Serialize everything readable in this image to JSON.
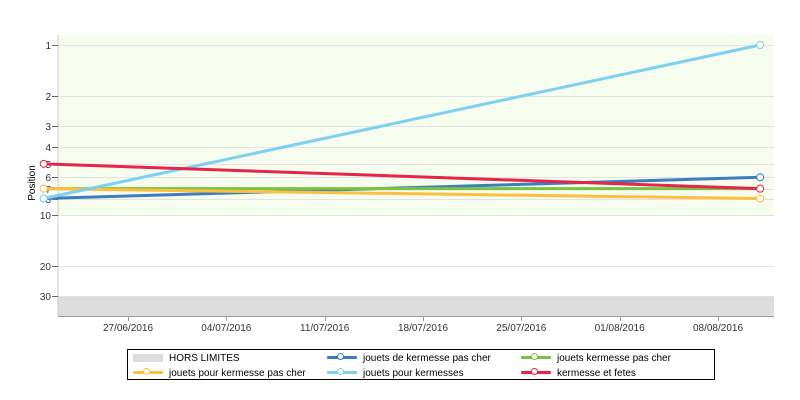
{
  "chart_data": {
    "type": "line",
    "title": "",
    "xlabel": "",
    "ylabel": "Position",
    "y_scale": "log",
    "y_inverted": true,
    "y_ticks": [
      1,
      2,
      3,
      4,
      5,
      6,
      7,
      8,
      10,
      20,
      30
    ],
    "x_tick_labels": [
      "27/06/2016",
      "04/07/2016",
      "11/07/2016",
      "18/07/2016",
      "25/07/2016",
      "01/08/2016",
      "08/08/2016"
    ],
    "x": [
      "2016-06-21",
      "2016-08-11"
    ],
    "grid": true,
    "legend_position": "bottom",
    "out_of_range_band": {
      "name": "HORS LIMITES",
      "color": "#dddddd"
    },
    "series": [
      {
        "name": "jouets de kermesse pas cher",
        "color": "#3d7dbf",
        "values": [
          8,
          6
        ]
      },
      {
        "name": "jouets kermesse pas cher",
        "color": "#7cc242",
        "values": [
          7,
          7
        ]
      },
      {
        "name": "jouets pour kermesse pas cher",
        "color": "#fcc03e",
        "values": [
          7,
          8
        ]
      },
      {
        "name": "jouets pour kermesses",
        "color": "#7dd0ef",
        "values": [
          8,
          1
        ]
      },
      {
        "name": "kermesse et fetes",
        "color": "#e5254a",
        "values": [
          5,
          7
        ]
      }
    ],
    "plot_background": "#f6fcee"
  },
  "legend": {
    "items": [
      {
        "label": "HORS LIMITES"
      },
      {
        "label": "jouets de kermesse pas cher"
      },
      {
        "label": "jouets kermesse pas cher"
      },
      {
        "label": "jouets pour kermesse pas cher"
      },
      {
        "label": "jouets pour kermesses"
      },
      {
        "label": "kermesse et fetes"
      }
    ]
  }
}
